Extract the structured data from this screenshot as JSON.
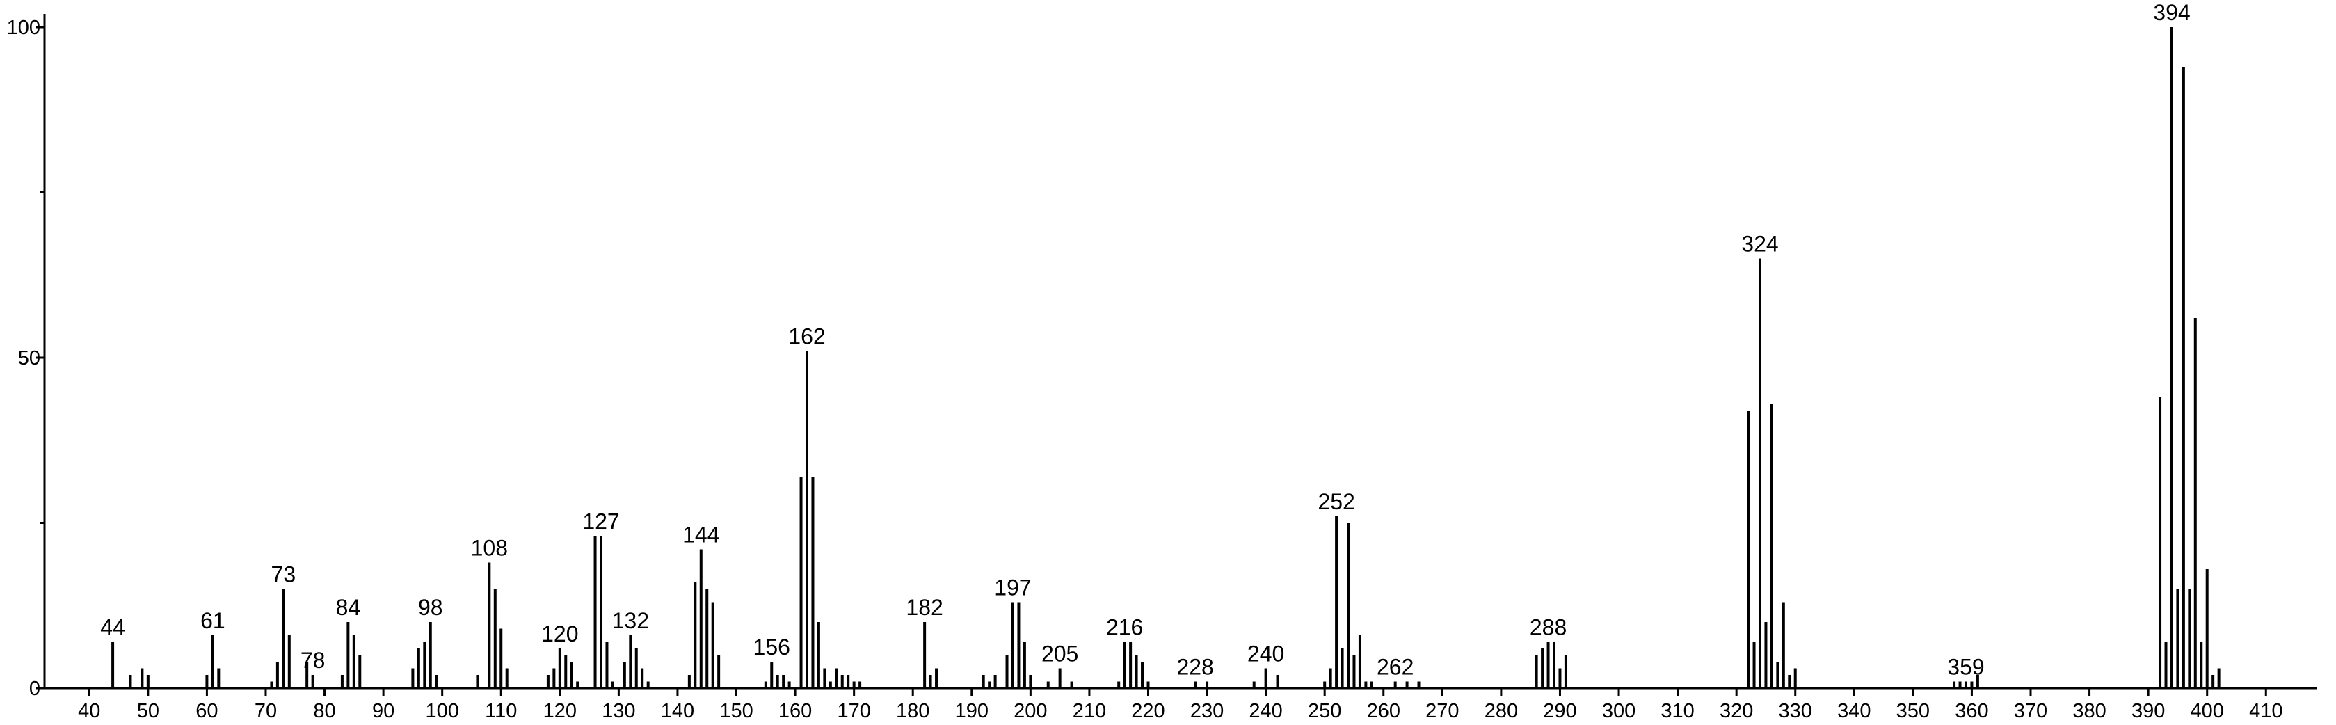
{
  "chart_data": {
    "type": "stick",
    "x": [
      44,
      47,
      49,
      50,
      60,
      61,
      62,
      71,
      72,
      73,
      74,
      77,
      78,
      83,
      84,
      85,
      86,
      95,
      96,
      97,
      98,
      99,
      106,
      108,
      109,
      110,
      111,
      118,
      119,
      120,
      121,
      122,
      123,
      126,
      127,
      128,
      129,
      131,
      132,
      133,
      134,
      135,
      142,
      143,
      144,
      145,
      146,
      147,
      155,
      156,
      157,
      158,
      159,
      161,
      162,
      163,
      164,
      165,
      166,
      167,
      168,
      169,
      170,
      171,
      182,
      183,
      184,
      192,
      193,
      194,
      196,
      197,
      198,
      199,
      200,
      203,
      205,
      207,
      215,
      216,
      217,
      218,
      219,
      220,
      228,
      230,
      238,
      240,
      242,
      250,
      251,
      252,
      253,
      254,
      255,
      256,
      257,
      258,
      262,
      264,
      266,
      286,
      287,
      288,
      289,
      290,
      291,
      322,
      323,
      324,
      325,
      326,
      327,
      328,
      329,
      330,
      357,
      358,
      359,
      360,
      361,
      392,
      393,
      394,
      395,
      396,
      397,
      398,
      399,
      400,
      401,
      402
    ],
    "values": [
      7,
      2,
      3,
      2,
      2,
      8,
      3,
      1,
      4,
      15,
      8,
      4,
      2,
      2,
      10,
      8,
      5,
      3,
      6,
      7,
      10,
      2,
      2,
      19,
      15,
      9,
      3,
      2,
      3,
      6,
      5,
      4,
      1,
      23,
      23,
      7,
      1,
      4,
      8,
      6,
      3,
      1,
      2,
      16,
      21,
      15,
      13,
      5,
      1,
      4,
      2,
      2,
      1,
      32,
      51,
      32,
      10,
      3,
      1,
      3,
      2,
      2,
      1,
      1,
      10,
      2,
      3,
      2,
      1,
      2,
      5,
      13,
      13,
      7,
      2,
      1,
      3,
      1,
      1,
      7,
      7,
      5,
      4,
      1,
      1,
      1,
      1,
      3,
      2,
      1,
      3,
      26,
      6,
      25,
      5,
      8,
      1,
      1,
      1,
      1,
      1,
      5,
      6,
      7,
      7,
      3,
      5,
      42,
      7,
      65,
      10,
      43,
      4,
      13,
      2,
      3,
      1,
      1,
      1,
      1,
      2,
      44,
      7,
      100,
      15,
      94,
      15,
      56,
      7,
      18,
      2,
      3
    ],
    "peak_labels": [
      44,
      61,
      73,
      78,
      84,
      98,
      108,
      120,
      127,
      132,
      144,
      156,
      162,
      182,
      197,
      205,
      216,
      228,
      240,
      252,
      262,
      288,
      324,
      359,
      394
    ],
    "color": "#000000",
    "xlim": [
      32.4,
      418.6
    ],
    "ylim": [
      0,
      102
    ],
    "xticks": [
      40,
      50,
      60,
      70,
      80,
      90,
      100,
      110,
      120,
      130,
      140,
      150,
      160,
      170,
      180,
      190,
      200,
      210,
      220,
      230,
      240,
      250,
      260,
      270,
      280,
      290,
      300,
      310,
      320,
      330,
      340,
      350,
      360,
      370,
      380,
      390,
      400,
      410
    ],
    "yticks": [
      0,
      50,
      100
    ],
    "yminor_ticks": [
      25,
      75
    ]
  }
}
